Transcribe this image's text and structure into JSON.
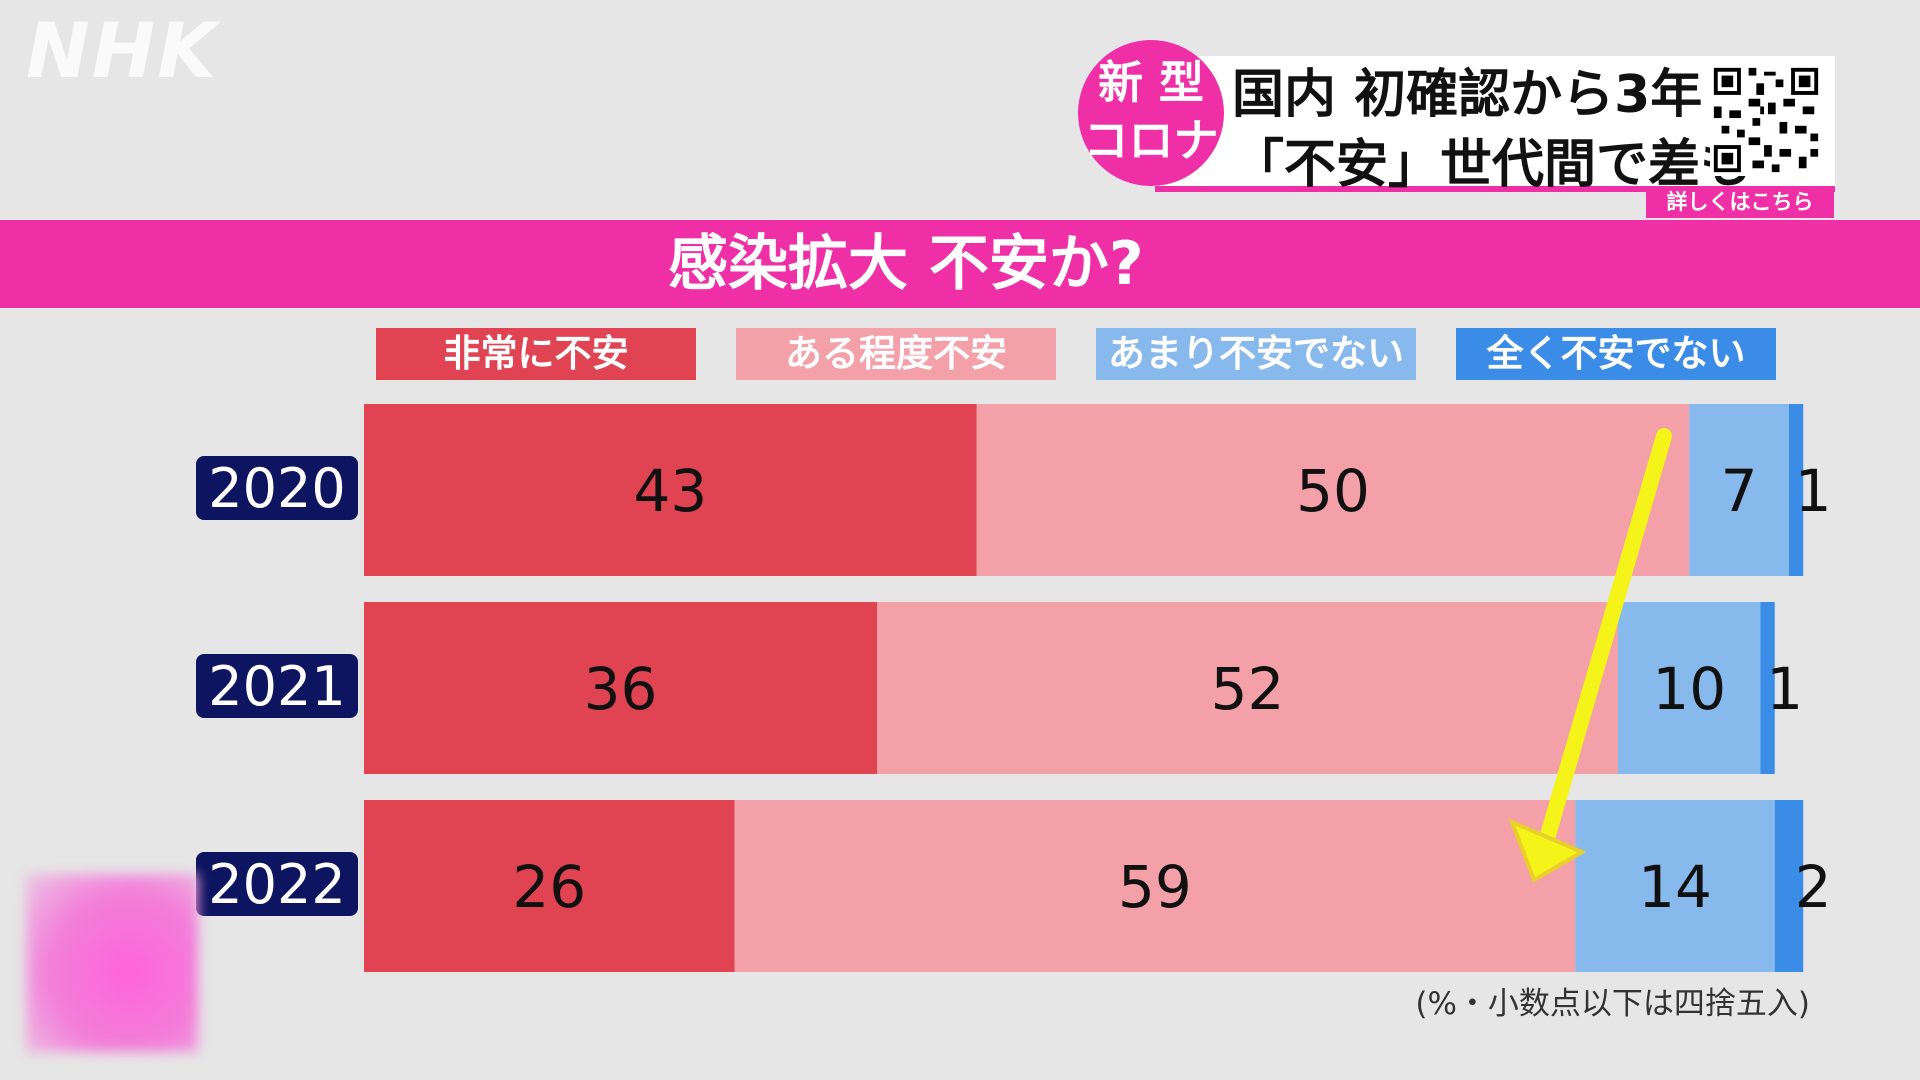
{
  "broadcaster": "NHK",
  "news": {
    "badge_line1": "新 型",
    "badge_line2": "コロナ",
    "headline_line1": "国内 初確認から3年",
    "headline_line2": "「不安」世代間で差も",
    "qr_label": "詳しくはこちら"
  },
  "colors": {
    "very_anxious": "#e04452",
    "somewhat_anxious": "#f4a0a8",
    "not_very": "#88b9ec",
    "not_at_all": "#3a8ce6",
    "label_box": "#0d1460",
    "accent": "#ee2fa6",
    "arrow": "#f4f41a"
  },
  "chart_data": {
    "type": "bar",
    "stacked": true,
    "orientation": "horizontal",
    "title": "感染拡大 不安か?",
    "categories": [
      "2020",
      "2021",
      "2022"
    ],
    "series": [
      {
        "name": "非常に不安",
        "values": [
          43,
          36,
          26
        ]
      },
      {
        "name": "ある程度不安",
        "values": [
          50,
          52,
          59
        ]
      },
      {
        "name": "あまり不安でない",
        "values": [
          7,
          10,
          14
        ]
      },
      {
        "name": "全く不安でない",
        "values": [
          1,
          1,
          2
        ]
      }
    ],
    "legend_position": "top",
    "note": "(%・小数点以下は四捨五入)"
  }
}
